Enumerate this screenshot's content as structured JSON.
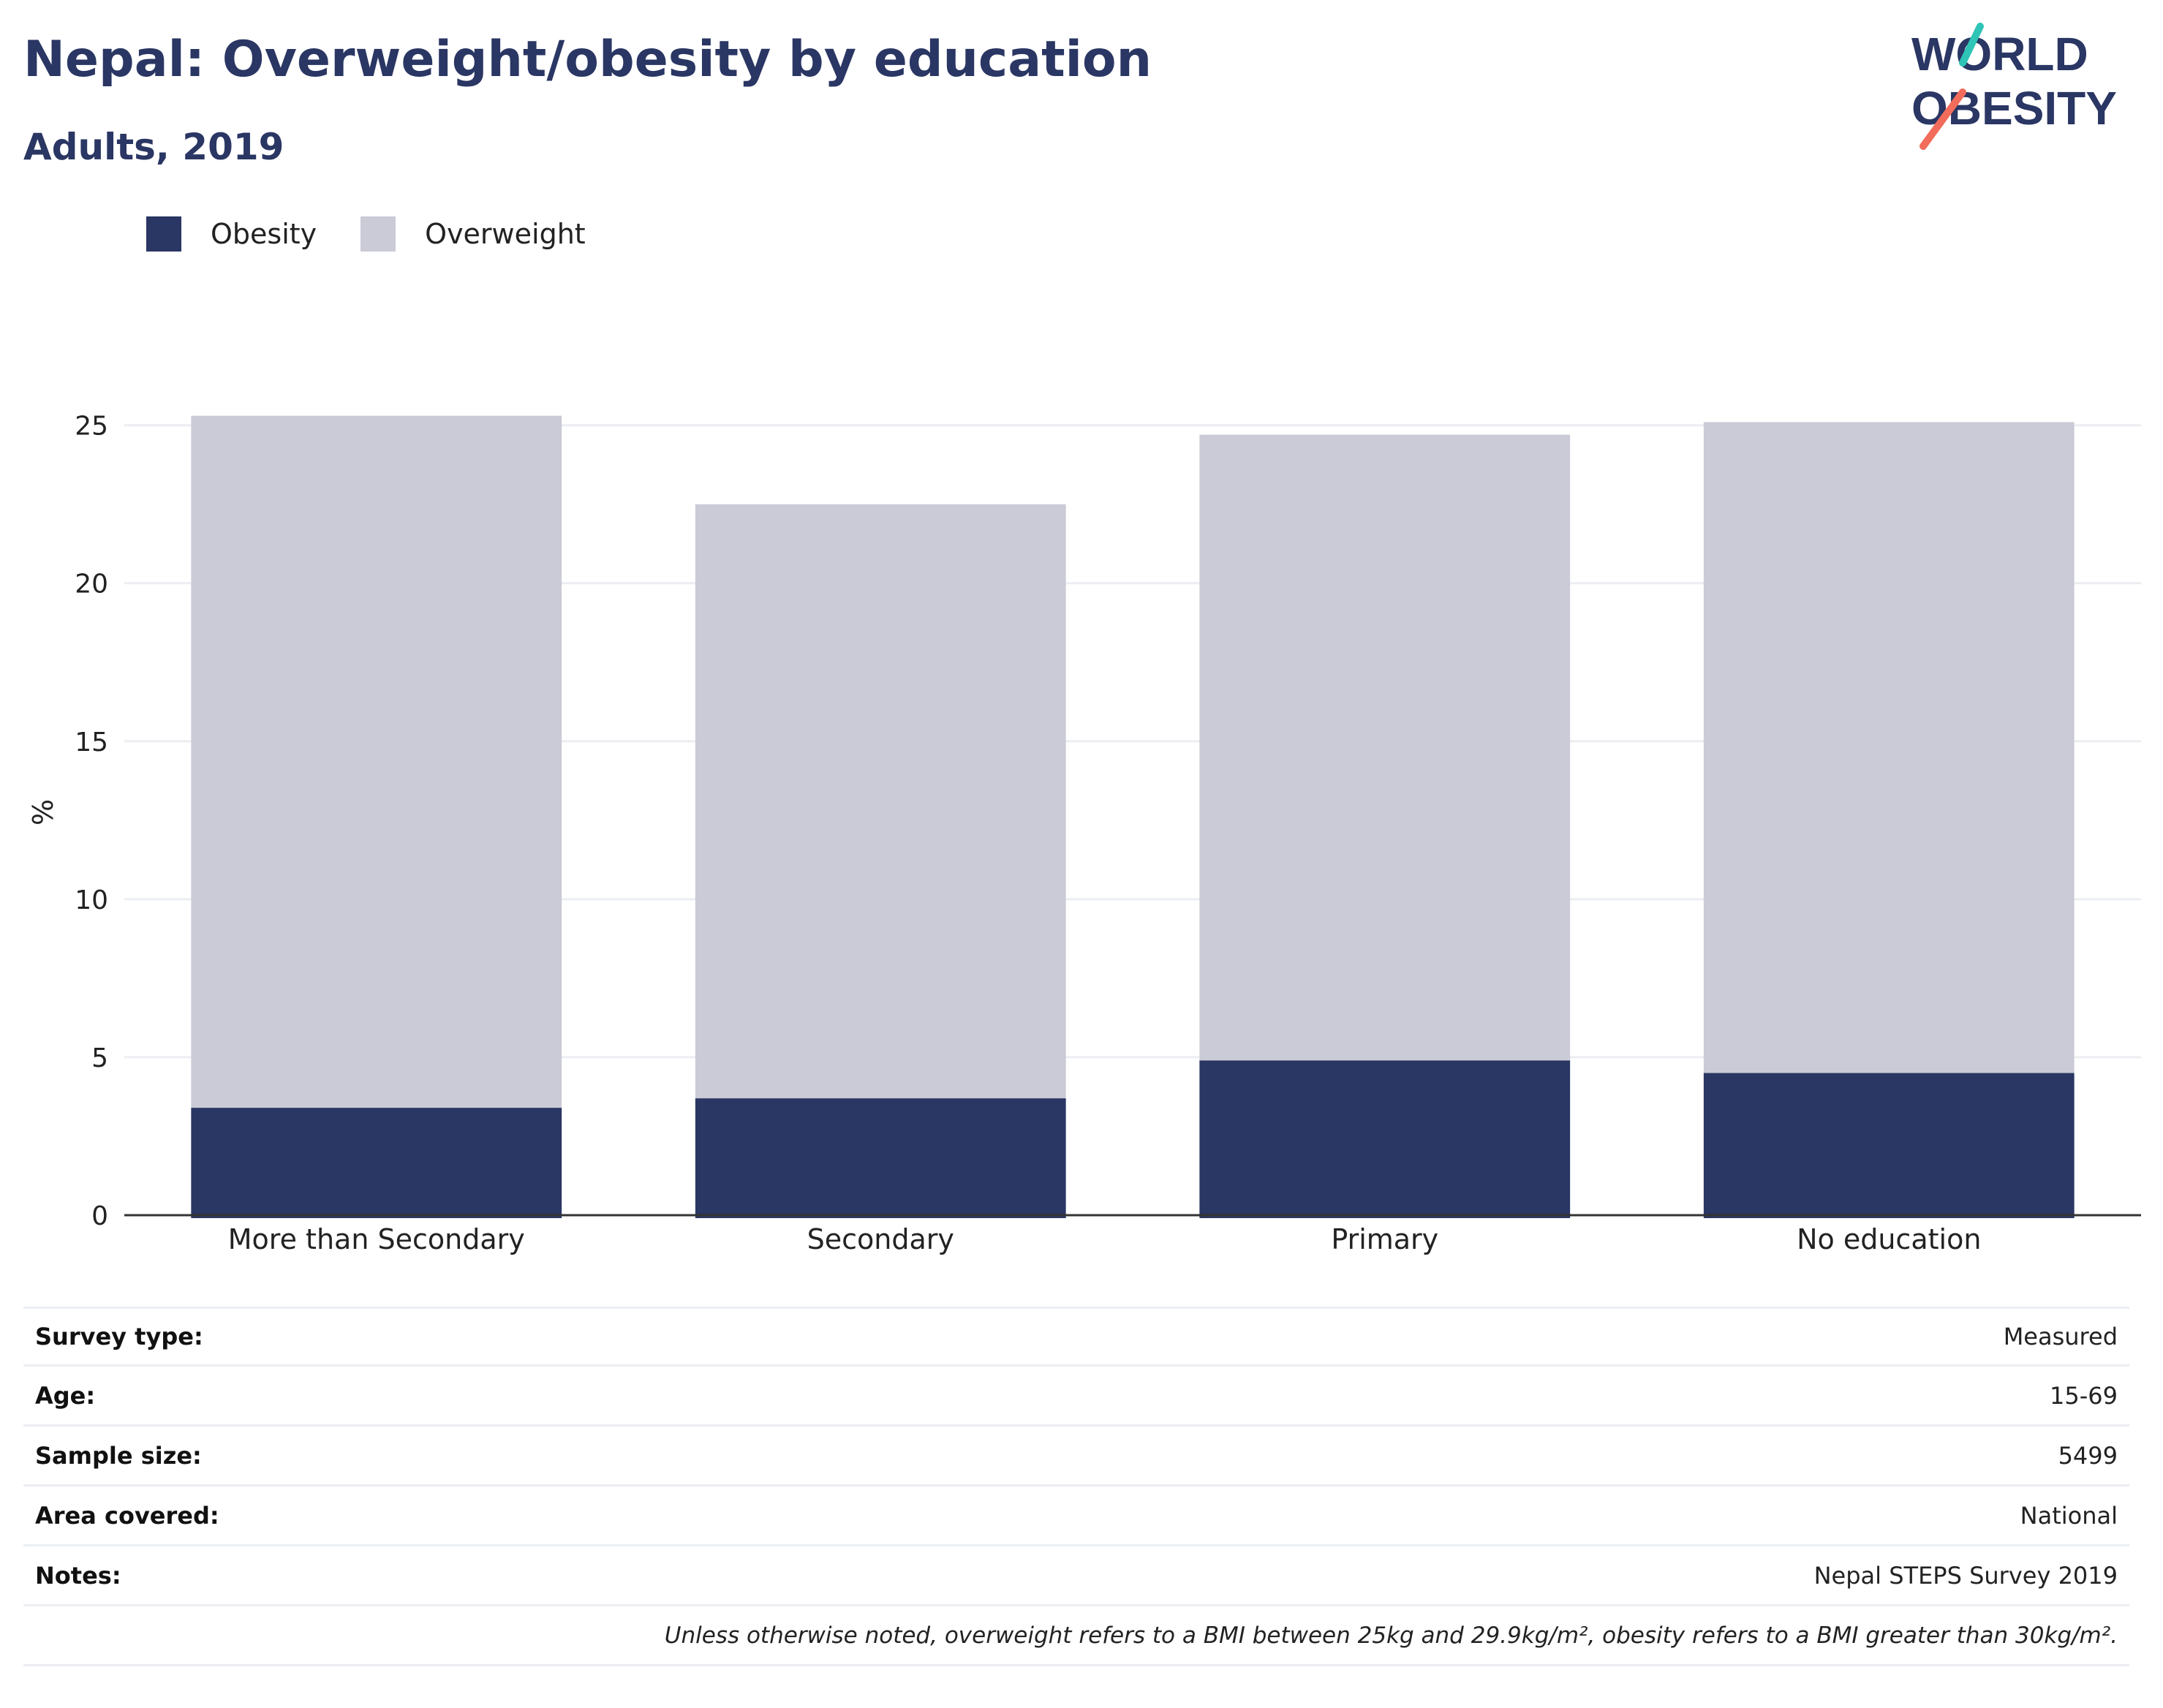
{
  "header": {
    "title": "Nepal: Overweight/obesity by education",
    "subtitle": "Adults, 2019"
  },
  "logo": {
    "line1": "WORLD",
    "line2": "OBESITY"
  },
  "legend": [
    {
      "label": "Obesity",
      "color": "#2a3663"
    },
    {
      "label": "Overweight",
      "color": "#cacbd6"
    }
  ],
  "chart_data": {
    "type": "bar",
    "stacked": true,
    "categories": [
      "More than Secondary",
      "Secondary",
      "Primary",
      "No education"
    ],
    "series": [
      {
        "name": "Obesity",
        "color": "#2a3663",
        "values": [
          3.4,
          3.7,
          4.9,
          4.5
        ]
      },
      {
        "name": "Overweight",
        "color": "#cacbd6",
        "values": [
          21.9,
          18.8,
          19.8,
          20.6
        ]
      }
    ],
    "ylabel": "%",
    "ylim": [
      0,
      25.5
    ],
    "yticks": [
      0,
      5,
      10,
      15,
      20,
      25
    ],
    "grid": true,
    "legend_position": "top-left"
  },
  "meta": [
    {
      "label": "Survey type:",
      "value": "Measured"
    },
    {
      "label": "Age:",
      "value": "15-69"
    },
    {
      "label": "Sample size:",
      "value": "5499"
    },
    {
      "label": "Area covered:",
      "value": "National"
    },
    {
      "label": "Notes:",
      "value": "Nepal STEPS Survey 2019"
    }
  ],
  "footnote": "Unless otherwise noted, overweight refers to a BMI between 25kg and 29.9kg/m², obesity refers to a BMI greater than 30kg/m²."
}
